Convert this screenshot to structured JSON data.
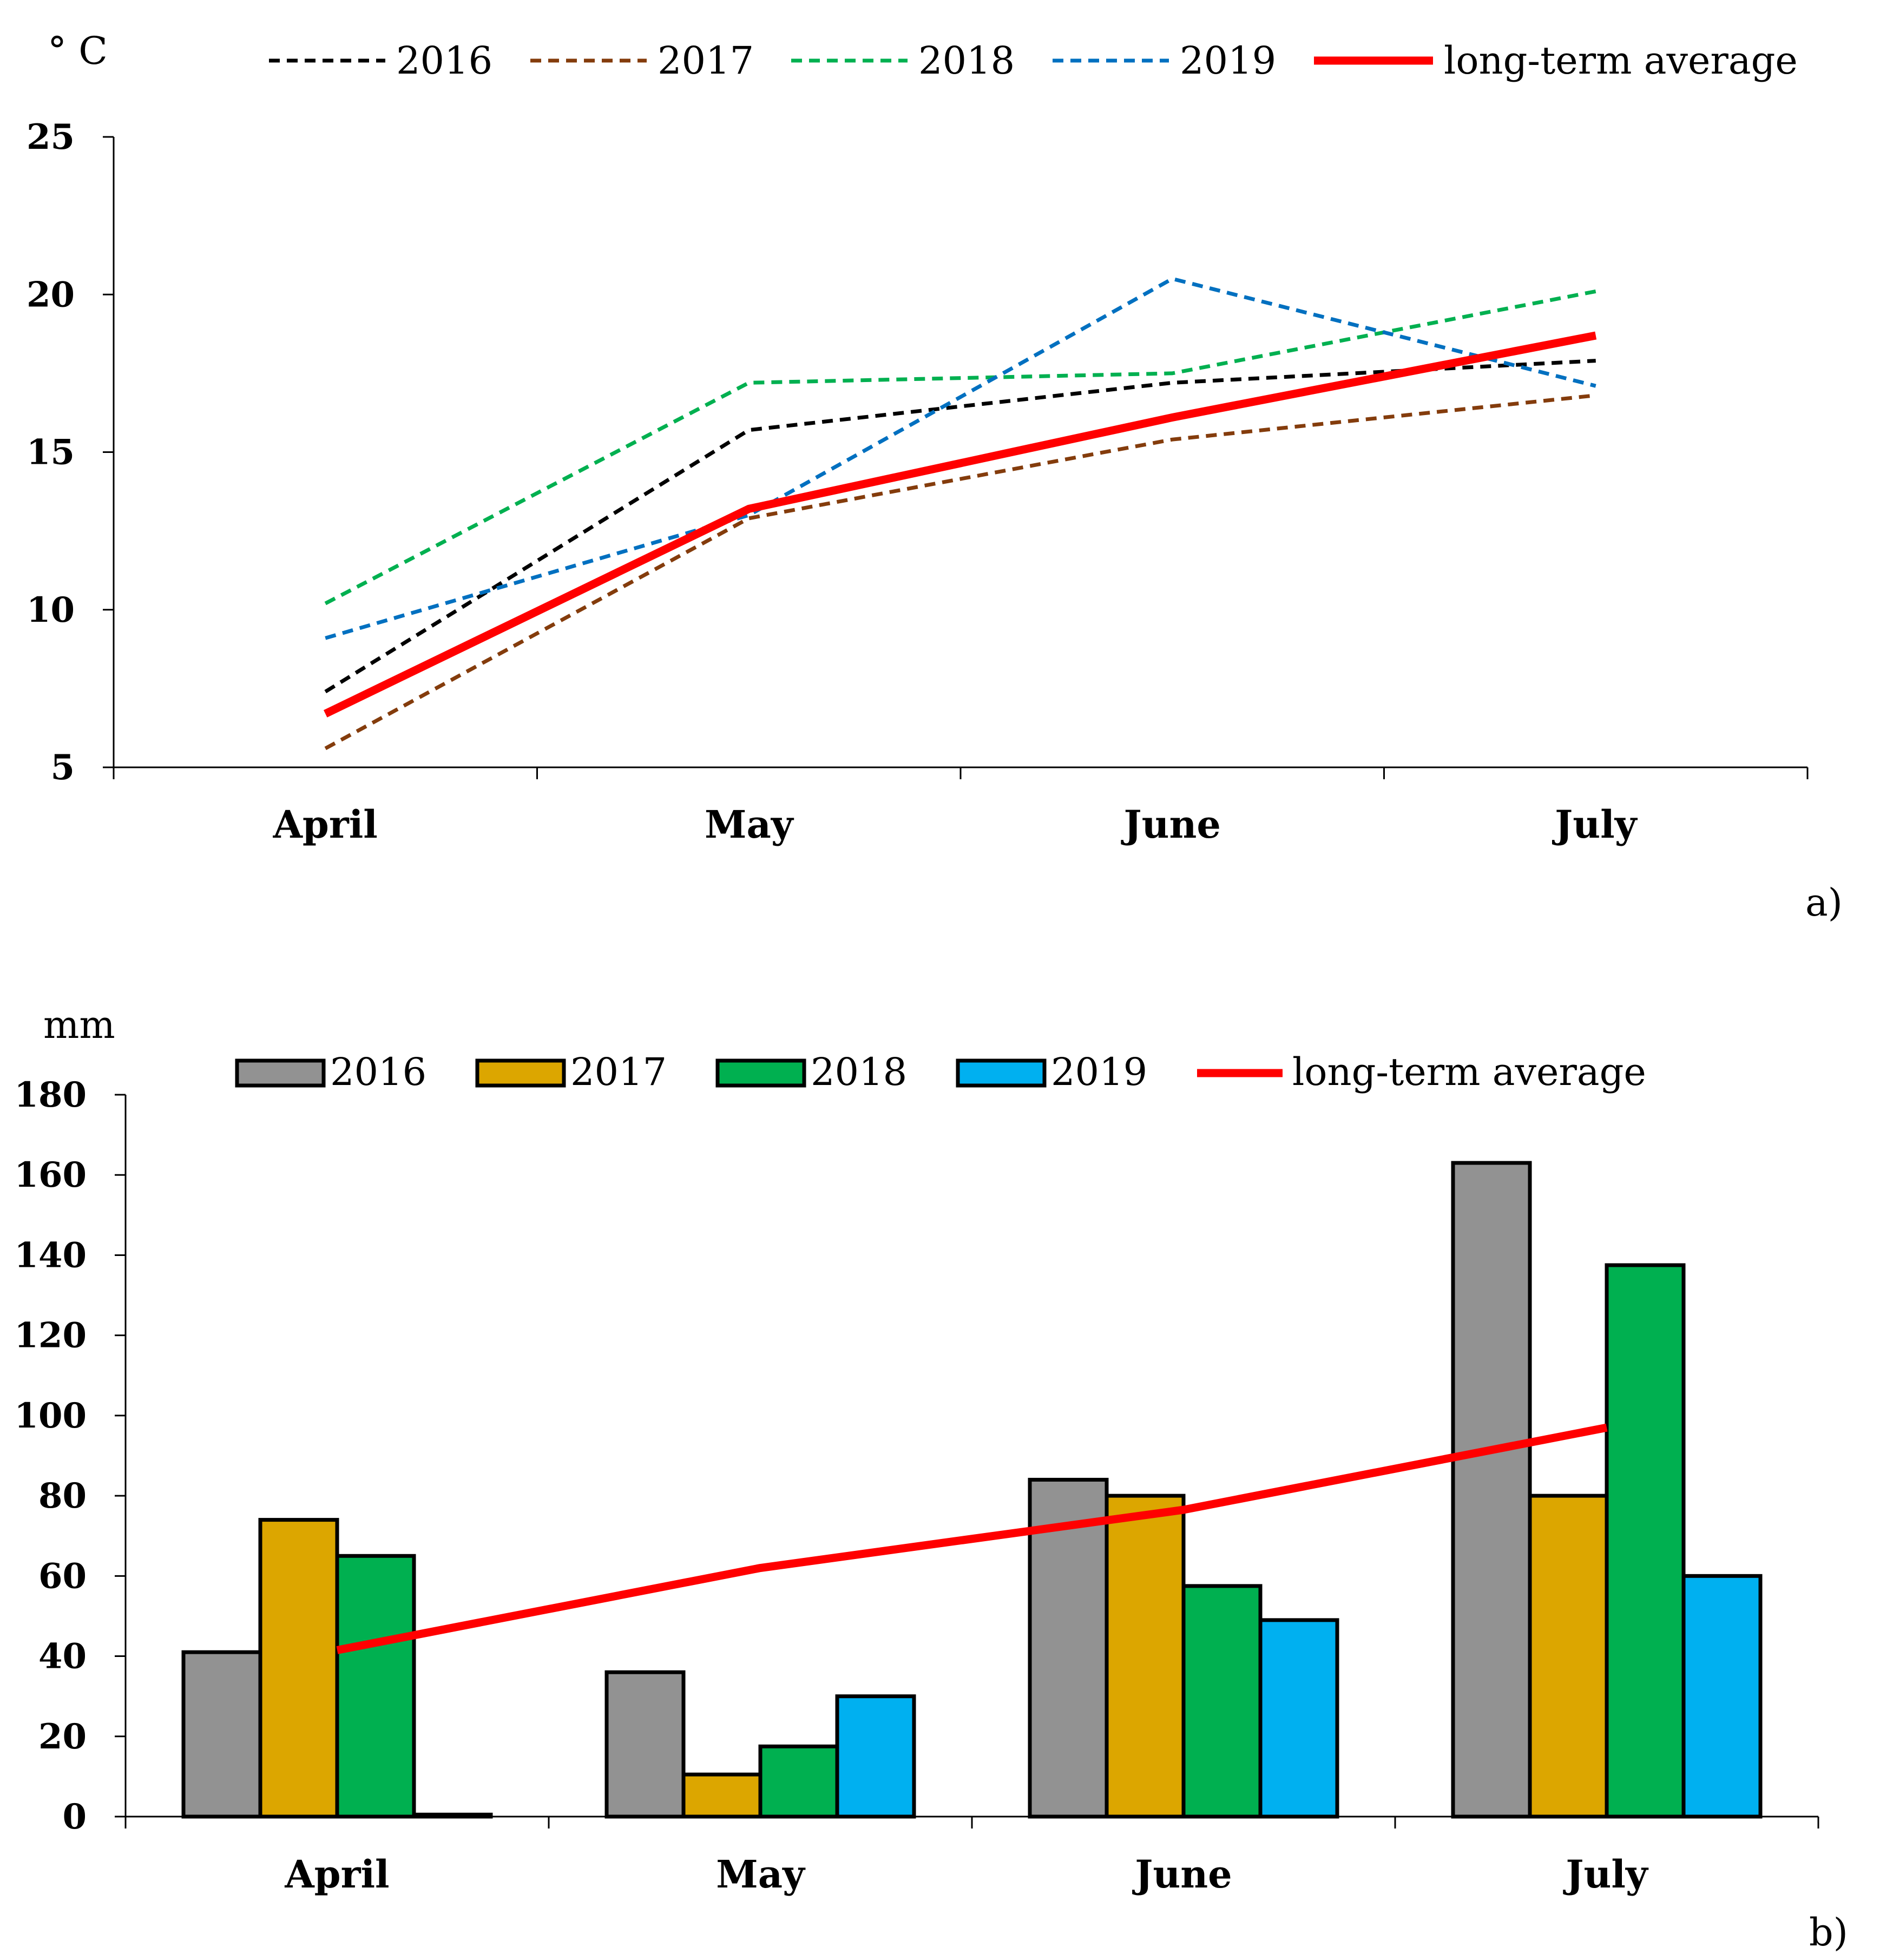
{
  "chart_data": [
    {
      "type": "line",
      "panel_label": "a)",
      "ylabel": "° C",
      "categories": [
        "April",
        "May",
        "June",
        "July"
      ],
      "ylim": [
        5,
        25
      ],
      "yticks": [
        5,
        10,
        15,
        20,
        25
      ],
      "yticklabels": [
        "5",
        "10",
        "15",
        "20",
        "25"
      ],
      "series": [
        {
          "name": "2016",
          "values": [
            7.4,
            15.7,
            17.2,
            17.9
          ],
          "color": "#000000",
          "style": "dashed"
        },
        {
          "name": "2017",
          "values": [
            5.6,
            12.9,
            15.4,
            16.8
          ],
          "color": "#843c0c",
          "style": "dashed"
        },
        {
          "name": "2018",
          "values": [
            10.2,
            17.2,
            17.5,
            20.1
          ],
          "color": "#00b050",
          "style": "dashed"
        },
        {
          "name": "2019",
          "values": [
            9.1,
            13.0,
            20.5,
            17.1
          ],
          "color": "#0070c0",
          "style": "dashed"
        },
        {
          "name": "long-term average",
          "values": [
            6.7,
            13.2,
            16.1,
            18.7
          ],
          "color": "#ff0000",
          "style": "solid"
        }
      ]
    },
    {
      "type": "bar",
      "panel_label": "b)",
      "ylabel": "mm",
      "categories": [
        "April",
        "May",
        "June",
        "July"
      ],
      "ylim": [
        0,
        180
      ],
      "yticks": [
        0,
        20,
        40,
        60,
        80,
        100,
        120,
        140,
        160,
        180
      ],
      "yticklabels": [
        "0",
        "20",
        "40",
        "60",
        "80",
        "100",
        "120",
        "140",
        "160",
        "180"
      ],
      "series": [
        {
          "name": "2016",
          "values": [
            41,
            36,
            84,
            163
          ],
          "color": "#929292"
        },
        {
          "name": "2017",
          "values": [
            74,
            10.5,
            80,
            80
          ],
          "color": "#dca600"
        },
        {
          "name": "2018",
          "values": [
            65,
            17.5,
            57.5,
            137.5
          ],
          "color": "#00b050"
        },
        {
          "name": "2019",
          "values": [
            0.5,
            30,
            49,
            60
          ],
          "color": "#00b0f0"
        }
      ],
      "line": {
        "name": "long-term average",
        "values": [
          41.5,
          62,
          76.5,
          97
        ],
        "color": "#ff0000"
      }
    }
  ]
}
